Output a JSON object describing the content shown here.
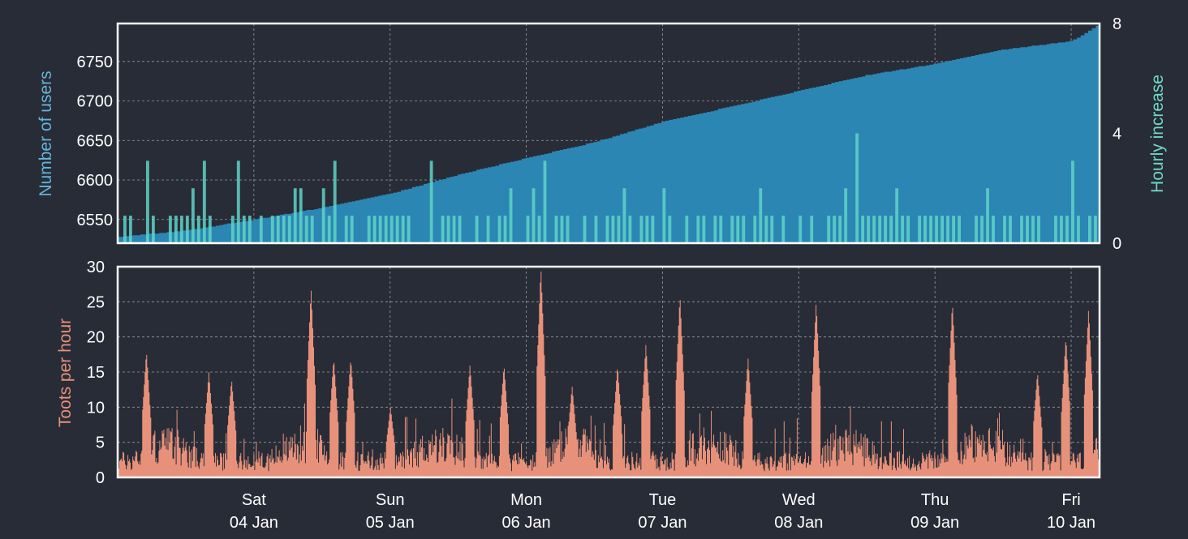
{
  "colors": {
    "background": "#282c37",
    "users_area": "#2b86b3",
    "hourly_bars": "#5fd3c8",
    "toots_area": "#e8917a",
    "frame": "#ffffff",
    "grid": "#c8c8c8",
    "tick_text": "#ffffff",
    "users_label": "#63b4d8",
    "hourly_label": "#6fd7c8",
    "toots_label": "#e8917a"
  },
  "chart_data": [
    {
      "type": "area",
      "ylabel": "Number of users",
      "ylim": [
        6520,
        6798
      ],
      "yticks": [
        6550,
        6600,
        6650,
        6700,
        6750
      ],
      "x_domain": [
        "2025-01-03T00:00",
        "2025-01-10T05:00"
      ],
      "x_tick_dates": [
        "2025-01-04",
        "2025-01-05",
        "2025-01-06",
        "2025-01-07",
        "2025-01-08",
        "2025-01-09",
        "2025-01-10"
      ],
      "series": [
        {
          "x": [
            "2025-01-03T00:00",
            "2025-01-03T06:00",
            "2025-01-03T12:00",
            "2025-01-04T00:00",
            "2025-01-04T12:00",
            "2025-01-05T00:00",
            "2025-01-05T12:00",
            "2025-01-06T00:00",
            "2025-01-06T12:00",
            "2025-01-07T00:00",
            "2025-01-07T12:00",
            "2025-01-08T00:00",
            "2025-01-08T12:00",
            "2025-01-09T00:00",
            "2025-01-09T12:00",
            "2025-01-10T00:00",
            "2025-01-10T05:00"
          ],
          "y": [
            6528,
            6532,
            6536,
            6550,
            6565,
            6583,
            6607,
            6628,
            6648,
            6674,
            6693,
            6713,
            6733,
            6747,
            6765,
            6776,
            6798
          ]
        }
      ],
      "grid": true,
      "legend": "none"
    },
    {
      "type": "bar",
      "ylabel": "Hourly increase",
      "ylim": [
        0,
        8
      ],
      "yticks": [
        0,
        4,
        8
      ],
      "axis": "right",
      "description": "hourly new-user counts, mostly 0-1 with occasional spikes of 2-4",
      "typical_values": [
        0,
        1
      ],
      "spike_values": [
        2,
        3,
        4
      ]
    },
    {
      "type": "area",
      "ylabel": "Toots per hour",
      "ylim": [
        0,
        30
      ],
      "yticks": [
        0,
        5,
        10,
        15,
        20,
        25,
        30
      ],
      "x_domain": [
        "2025-01-03T00:00",
        "2025-01-10T05:00"
      ],
      "x_tick_labels": [
        {
          "day": "Sat",
          "date": "04 Jan"
        },
        {
          "day": "Sun",
          "date": "05 Jan"
        },
        {
          "day": "Mon",
          "date": "06 Jan"
        },
        {
          "day": "Tue",
          "date": "07 Jan"
        },
        {
          "day": "Wed",
          "date": "08 Jan"
        },
        {
          "day": "Thu",
          "date": "09 Jan"
        },
        {
          "day": "Fri",
          "date": "10 Jan"
        }
      ],
      "peaks": [
        {
          "x": "2025-01-03T05:00",
          "y": 18
        },
        {
          "x": "2025-01-03T16:00",
          "y": 15
        },
        {
          "x": "2025-01-03T20:00",
          "y": 14
        },
        {
          "x": "2025-01-04T10:00",
          "y": 27
        },
        {
          "x": "2025-01-04T14:00",
          "y": 17
        },
        {
          "x": "2025-01-04T17:00",
          "y": 17
        },
        {
          "x": "2025-01-05T00:00",
          "y": 10
        },
        {
          "x": "2025-01-05T14:00",
          "y": 16
        },
        {
          "x": "2025-01-05T20:00",
          "y": 16
        },
        {
          "x": "2025-01-06T02:30",
          "y": 30
        },
        {
          "x": "2025-01-06T08:00",
          "y": 13
        },
        {
          "x": "2025-01-06T16:00",
          "y": 16
        },
        {
          "x": "2025-01-06T21:00",
          "y": 19
        },
        {
          "x": "2025-01-07T03:00",
          "y": 26
        },
        {
          "x": "2025-01-07T15:00",
          "y": 17
        },
        {
          "x": "2025-01-08T03:00",
          "y": 25
        },
        {
          "x": "2025-01-09T03:00",
          "y": 25
        },
        {
          "x": "2025-01-09T18:00",
          "y": 15
        },
        {
          "x": "2025-01-09T23:00",
          "y": 20
        },
        {
          "x": "2025-01-10T03:00",
          "y": 24
        }
      ],
      "baseline_typical": 4,
      "grid": true,
      "legend": "none"
    }
  ]
}
